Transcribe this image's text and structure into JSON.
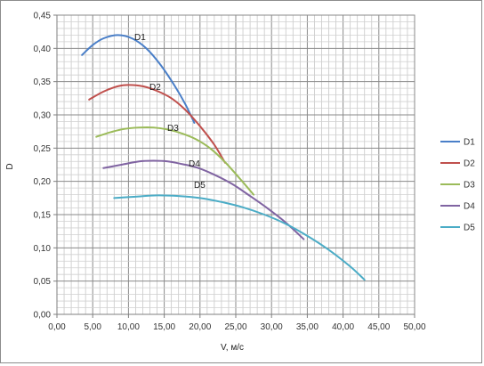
{
  "chart_data": {
    "type": "line",
    "title": "",
    "xlabel": "V, м/с",
    "ylabel": "D",
    "xlim": [
      0,
      50
    ],
    "ylim": [
      0,
      0.45
    ],
    "x_ticks": [
      "0,00",
      "5,00",
      "10,00",
      "15,00",
      "20,00",
      "25,00",
      "30,00",
      "35,00",
      "40,00",
      "45,00",
      "50,00"
    ],
    "y_ticks": [
      "0,00",
      "0,05",
      "0,10",
      "0,15",
      "0,20",
      "0,25",
      "0,30",
      "0,35",
      "0,40",
      "0,45"
    ],
    "grid": true,
    "legend_position": "right",
    "series": [
      {
        "name": "D1",
        "color": "#4a7fc8",
        "points": [
          [
            3.5,
            0.39
          ],
          [
            5,
            0.405
          ],
          [
            6.5,
            0.415
          ],
          [
            8.5,
            0.42
          ],
          [
            10.5,
            0.415
          ],
          [
            12.5,
            0.4
          ],
          [
            14.5,
            0.375
          ],
          [
            16.5,
            0.343
          ],
          [
            18,
            0.315
          ],
          [
            19.2,
            0.288
          ]
        ]
      },
      {
        "name": "D2",
        "color": "#c0504d",
        "points": [
          [
            4.5,
            0.323
          ],
          [
            6.5,
            0.335
          ],
          [
            8.5,
            0.343
          ],
          [
            10,
            0.345
          ],
          [
            12,
            0.343
          ],
          [
            14,
            0.336
          ],
          [
            16,
            0.325
          ],
          [
            18,
            0.307
          ],
          [
            20,
            0.283
          ],
          [
            22,
            0.255
          ],
          [
            23.5,
            0.228
          ]
        ]
      },
      {
        "name": "D3",
        "color": "#9bbb59",
        "points": [
          [
            5.5,
            0.267
          ],
          [
            7.5,
            0.274
          ],
          [
            9.5,
            0.279
          ],
          [
            11.5,
            0.281
          ],
          [
            13.5,
            0.281
          ],
          [
            15.5,
            0.278
          ],
          [
            17.5,
            0.272
          ],
          [
            19.5,
            0.263
          ],
          [
            21.5,
            0.249
          ],
          [
            23.5,
            0.229
          ],
          [
            25.5,
            0.205
          ],
          [
            27.5,
            0.18
          ]
        ]
      },
      {
        "name": "D4",
        "color": "#8064a2",
        "points": [
          [
            6.5,
            0.22
          ],
          [
            9,
            0.225
          ],
          [
            11.5,
            0.23
          ],
          [
            13.5,
            0.231
          ],
          [
            15.5,
            0.23
          ],
          [
            17.5,
            0.226
          ],
          [
            19.5,
            0.221
          ],
          [
            22,
            0.21
          ],
          [
            24.5,
            0.196
          ],
          [
            27,
            0.178
          ],
          [
            29.5,
            0.159
          ],
          [
            32,
            0.138
          ],
          [
            34.5,
            0.113
          ]
        ]
      },
      {
        "name": "D5",
        "color": "#4bacc6",
        "points": [
          [
            8,
            0.175
          ],
          [
            11,
            0.177
          ],
          [
            14,
            0.179
          ],
          [
            17,
            0.178
          ],
          [
            20,
            0.175
          ],
          [
            23,
            0.169
          ],
          [
            26,
            0.161
          ],
          [
            29,
            0.15
          ],
          [
            32,
            0.136
          ],
          [
            35,
            0.118
          ],
          [
            38,
            0.097
          ],
          [
            41,
            0.072
          ],
          [
            43,
            0.052
          ]
        ]
      }
    ]
  }
}
